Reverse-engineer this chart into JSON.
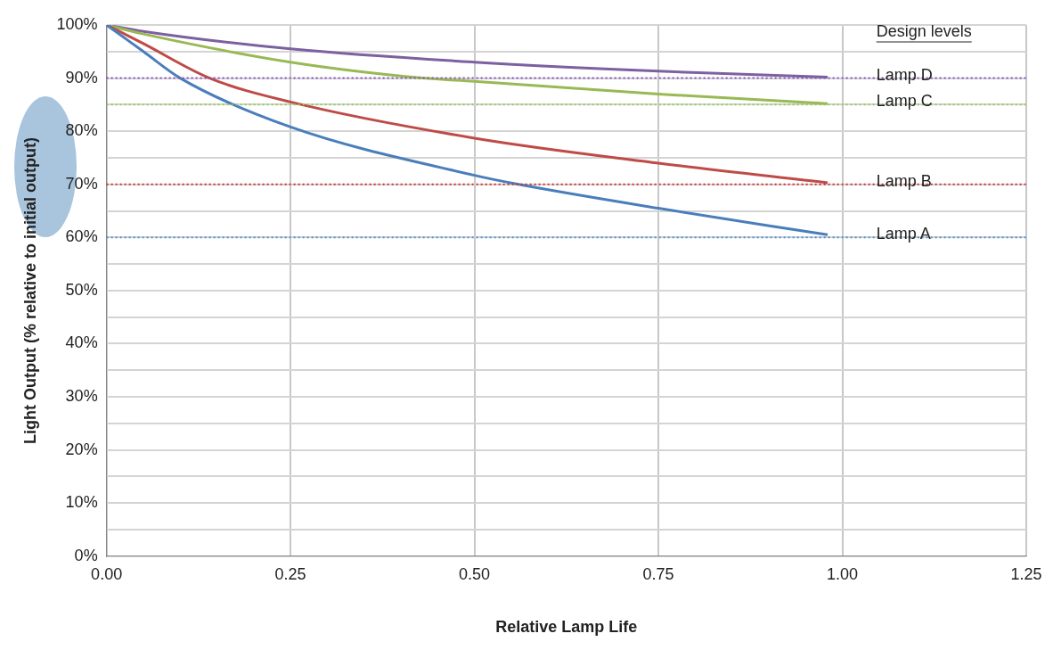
{
  "chart_data": {
    "type": "line",
    "xlabel": "Relative Lamp Life",
    "ylabel": "Light Output (% relative to initial output)",
    "xlim": [
      0,
      1.25
    ],
    "xticks": [
      {
        "value": 0,
        "label": "0.00"
      },
      {
        "value": 0.25,
        "label": "0.25"
      },
      {
        "value": 0.5,
        "label": "0.50"
      },
      {
        "value": 0.75,
        "label": "0.75"
      },
      {
        "value": 1,
        "label": "1.00"
      },
      {
        "value": 1.25,
        "label": "1.25"
      }
    ],
    "ylim": [
      0,
      100
    ],
    "yticks": [
      {
        "value": 0,
        "label": "0%"
      },
      {
        "value": 5,
        "label": null
      },
      {
        "value": 10,
        "label": "10%"
      },
      {
        "value": 15,
        "label": null
      },
      {
        "value": 20,
        "label": "20%"
      },
      {
        "value": 25,
        "label": null
      },
      {
        "value": 30,
        "label": "30%"
      },
      {
        "value": 35,
        "label": null
      },
      {
        "value": 40,
        "label": "40%"
      },
      {
        "value": 45,
        "label": null
      },
      {
        "value": 50,
        "label": "50%"
      },
      {
        "value": 55,
        "label": null
      },
      {
        "value": 60,
        "label": "60%"
      },
      {
        "value": 65,
        "label": null
      },
      {
        "value": 70,
        "label": "70%"
      },
      {
        "value": 75,
        "label": null
      },
      {
        "value": 80,
        "label": "80%"
      },
      {
        "value": 85,
        "label": null
      },
      {
        "value": 90,
        "label": "90%"
      },
      {
        "value": 95,
        "label": null
      },
      {
        "value": 100,
        "label": "100%"
      }
    ],
    "grid": true,
    "legend": false,
    "marker": "none",
    "line_style": "solid",
    "series": [
      {
        "color": "#4a7ebb",
        "x": [
          0,
          0.05,
          0.1,
          0.25,
          0.5,
          0.56,
          0.75,
          0.98
        ],
        "values": [
          100,
          95,
          90,
          80.8,
          71.7,
          70,
          65.5,
          60.5
        ]
      },
      {
        "color": "#be4b48",
        "x": [
          0,
          0.05,
          0.14,
          0.25,
          0.5,
          0.75,
          0.98
        ],
        "values": [
          100,
          96.5,
          90,
          85.5,
          78.7,
          74,
          70.3
        ]
      },
      {
        "color": "#98b954",
        "x": [
          0,
          0.05,
          0.25,
          0.43,
          0.5,
          0.75,
          0.98
        ],
        "values": [
          100,
          98.3,
          93,
          90,
          89.4,
          87,
          85.2
        ]
      },
      {
        "color": "#7d60a0",
        "x": [
          0,
          0.05,
          0.25,
          0.5,
          0.75,
          0.98
        ],
        "values": [
          100,
          98.8,
          95.5,
          93,
          91.3,
          90.2
        ]
      }
    ],
    "ref_lines": [
      {
        "axis": "y",
        "value": 60,
        "label": "Lamp A",
        "color": "#4a90d0",
        "line_style": "dotted"
      },
      {
        "axis": "y",
        "value": 70,
        "label": "Lamp B",
        "color": "#d03030",
        "line_style": "dotted"
      },
      {
        "axis": "y",
        "value": 85,
        "label": "Lamp C",
        "color": "#8fcf50",
        "line_style": "dotted"
      },
      {
        "axis": "y",
        "value": 90,
        "label": "Lamp D",
        "color": "#8a50c0",
        "line_style": "dotted"
      }
    ],
    "annotations": [
      "Design levels"
    ]
  }
}
